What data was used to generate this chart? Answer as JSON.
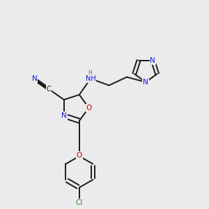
{
  "background_color": "#ebebeb",
  "bond_color": "#1a1a1a",
  "atom_colors": {
    "N": "#1414e0",
    "O": "#cc0000",
    "Cl": "#2d8c2d",
    "C": "#1a1a1a",
    "H": "#606060"
  },
  "figsize": [
    3.0,
    3.0
  ],
  "dpi": 100,
  "lw": 1.4,
  "fontsize": 7.5
}
